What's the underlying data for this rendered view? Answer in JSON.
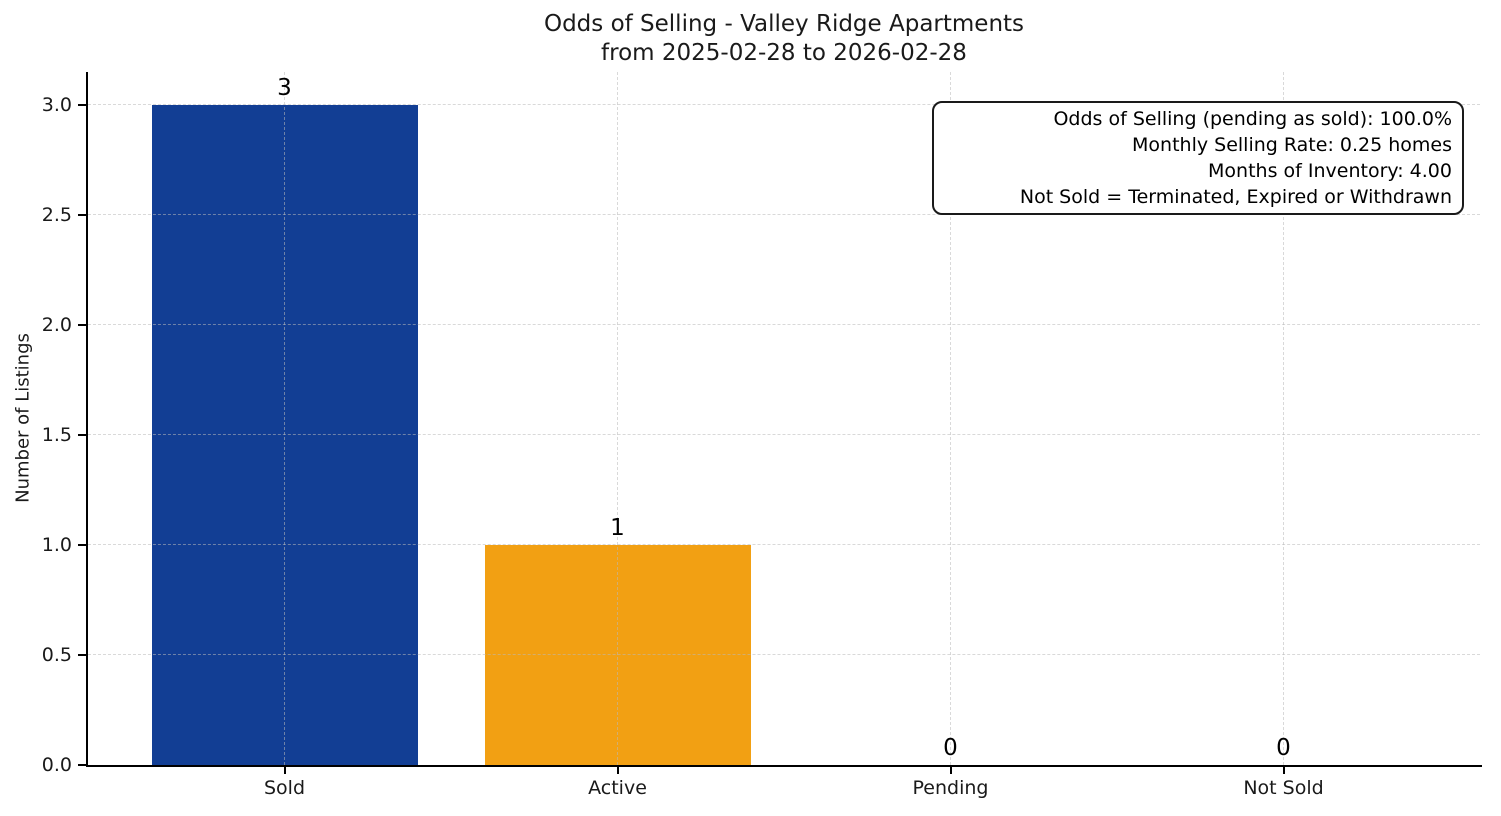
{
  "chart_data": {
    "type": "bar",
    "title": "Odds of Selling - Valley Ridge Apartments",
    "subtitle": "from 2025-02-28 to 2026-02-28",
    "categories": [
      "Sold",
      "Active",
      "Pending",
      "Not Sold"
    ],
    "values": [
      3,
      1,
      0,
      0
    ],
    "value_labels": [
      "3",
      "1",
      "0",
      "0"
    ],
    "bar_colors": [
      "#123e94",
      "#f2a013",
      null,
      null
    ],
    "xlabel": "",
    "ylabel": "Number of Listings",
    "yticks": [
      "0.0",
      "0.5",
      "1.0",
      "1.5",
      "2.0",
      "2.5",
      "3.0"
    ],
    "ylim": [
      0,
      3.15
    ],
    "grid": {
      "style": "dashed",
      "axes": "both",
      "color": "#b9b9b9"
    },
    "annotation": {
      "position": "top-right",
      "align": "right",
      "lines": [
        "Odds of Selling (pending as sold): 100.0%",
        "Monthly Selling Rate: 0.25 homes",
        "Months of Inventory: 4.00",
        "Not Sold = Terminated, Expired or Withdrawn"
      ],
      "stats": {
        "odds_of_selling_pending_as_sold": "100.0%",
        "monthly_selling_rate": "0.25 homes",
        "months_of_inventory": "4.00",
        "not_sold_definition": "Terminated, Expired or Withdrawn"
      }
    }
  }
}
